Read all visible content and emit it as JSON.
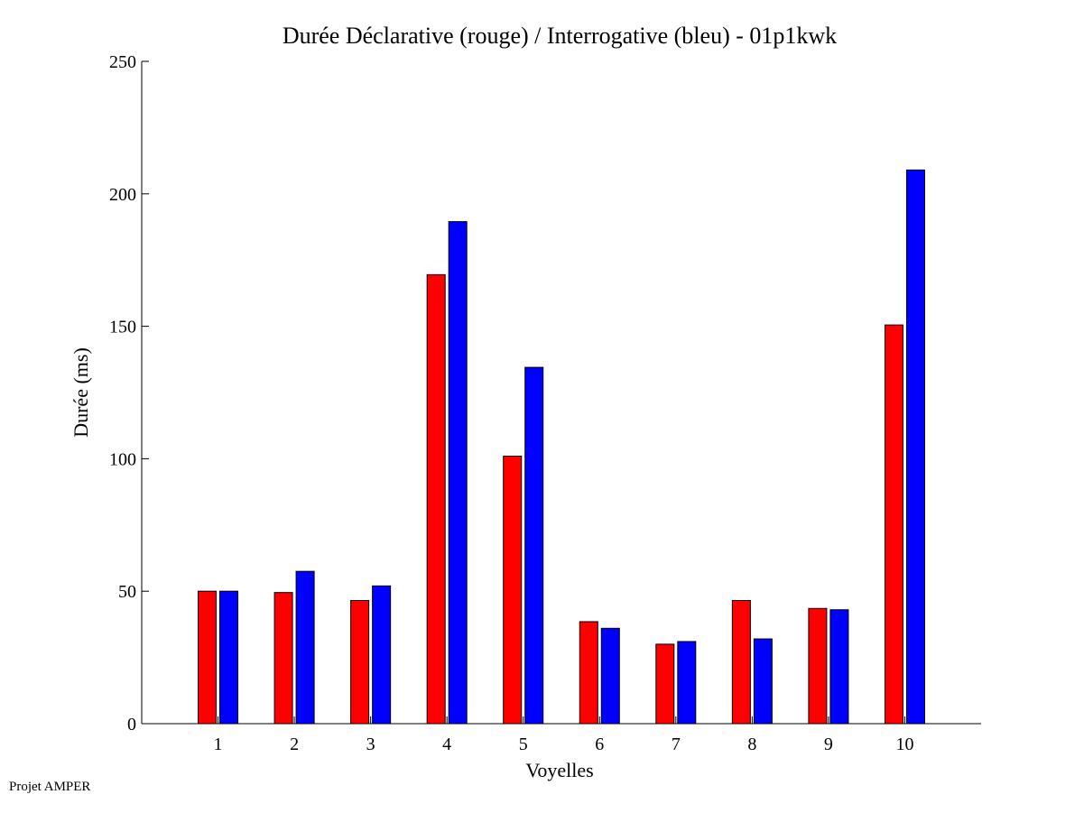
{
  "chart_data": {
    "type": "bar",
    "title": "Durée Déclarative (rouge) / Interrogative (bleu) - 01p1kwk",
    "xlabel": "Voyelles",
    "ylabel": "Durée (ms)",
    "categories": [
      "1",
      "2",
      "3",
      "4",
      "5",
      "6",
      "7",
      "8",
      "9",
      "10"
    ],
    "series": [
      {
        "color": "#ff0000",
        "values": [
          50,
          49.5,
          46.5,
          169.5,
          101,
          38.5,
          30,
          46.5,
          43.5,
          150.5
        ]
      },
      {
        "color": "#0000ff",
        "values": [
          50,
          57.5,
          52,
          189.5,
          134.5,
          36,
          31,
          32,
          43,
          209
        ]
      }
    ],
    "ylim": [
      0,
      250
    ],
    "yticks": [
      0,
      50,
      100,
      150,
      200,
      250
    ],
    "grid": false
  },
  "footer": {
    "text": "Projet AMPER"
  }
}
